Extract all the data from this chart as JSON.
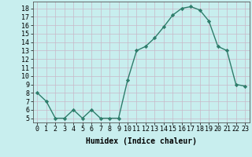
{
  "x": [
    0,
    1,
    2,
    3,
    4,
    5,
    6,
    7,
    8,
    9,
    10,
    11,
    12,
    13,
    14,
    15,
    16,
    17,
    18,
    19,
    20,
    21,
    22,
    23
  ],
  "y": [
    8.0,
    7.0,
    5.0,
    5.0,
    6.0,
    5.0,
    6.0,
    5.0,
    5.0,
    5.0,
    9.5,
    13.0,
    13.5,
    14.5,
    15.8,
    17.2,
    18.0,
    18.2,
    17.8,
    16.5,
    13.5,
    13.0,
    9.0,
    8.8
  ],
  "line_color": "#2e7d6b",
  "marker": "D",
  "marker_size": 2.2,
  "bg_color": "#c8eeee",
  "grid_color": "#b0d8d8",
  "xlabel": "Humidex (Indice chaleur)",
  "xlim": [
    -0.5,
    23.5
  ],
  "ylim": [
    4.5,
    18.8
  ],
  "yticks": [
    5,
    6,
    7,
    8,
    9,
    10,
    11,
    12,
    13,
    14,
    15,
    16,
    17,
    18
  ],
  "xticks": [
    0,
    1,
    2,
    3,
    4,
    5,
    6,
    7,
    8,
    9,
    10,
    11,
    12,
    13,
    14,
    15,
    16,
    17,
    18,
    19,
    20,
    21,
    22,
    23
  ],
  "xlabel_fontsize": 7,
  "tick_fontsize": 6,
  "line_width": 1.0
}
